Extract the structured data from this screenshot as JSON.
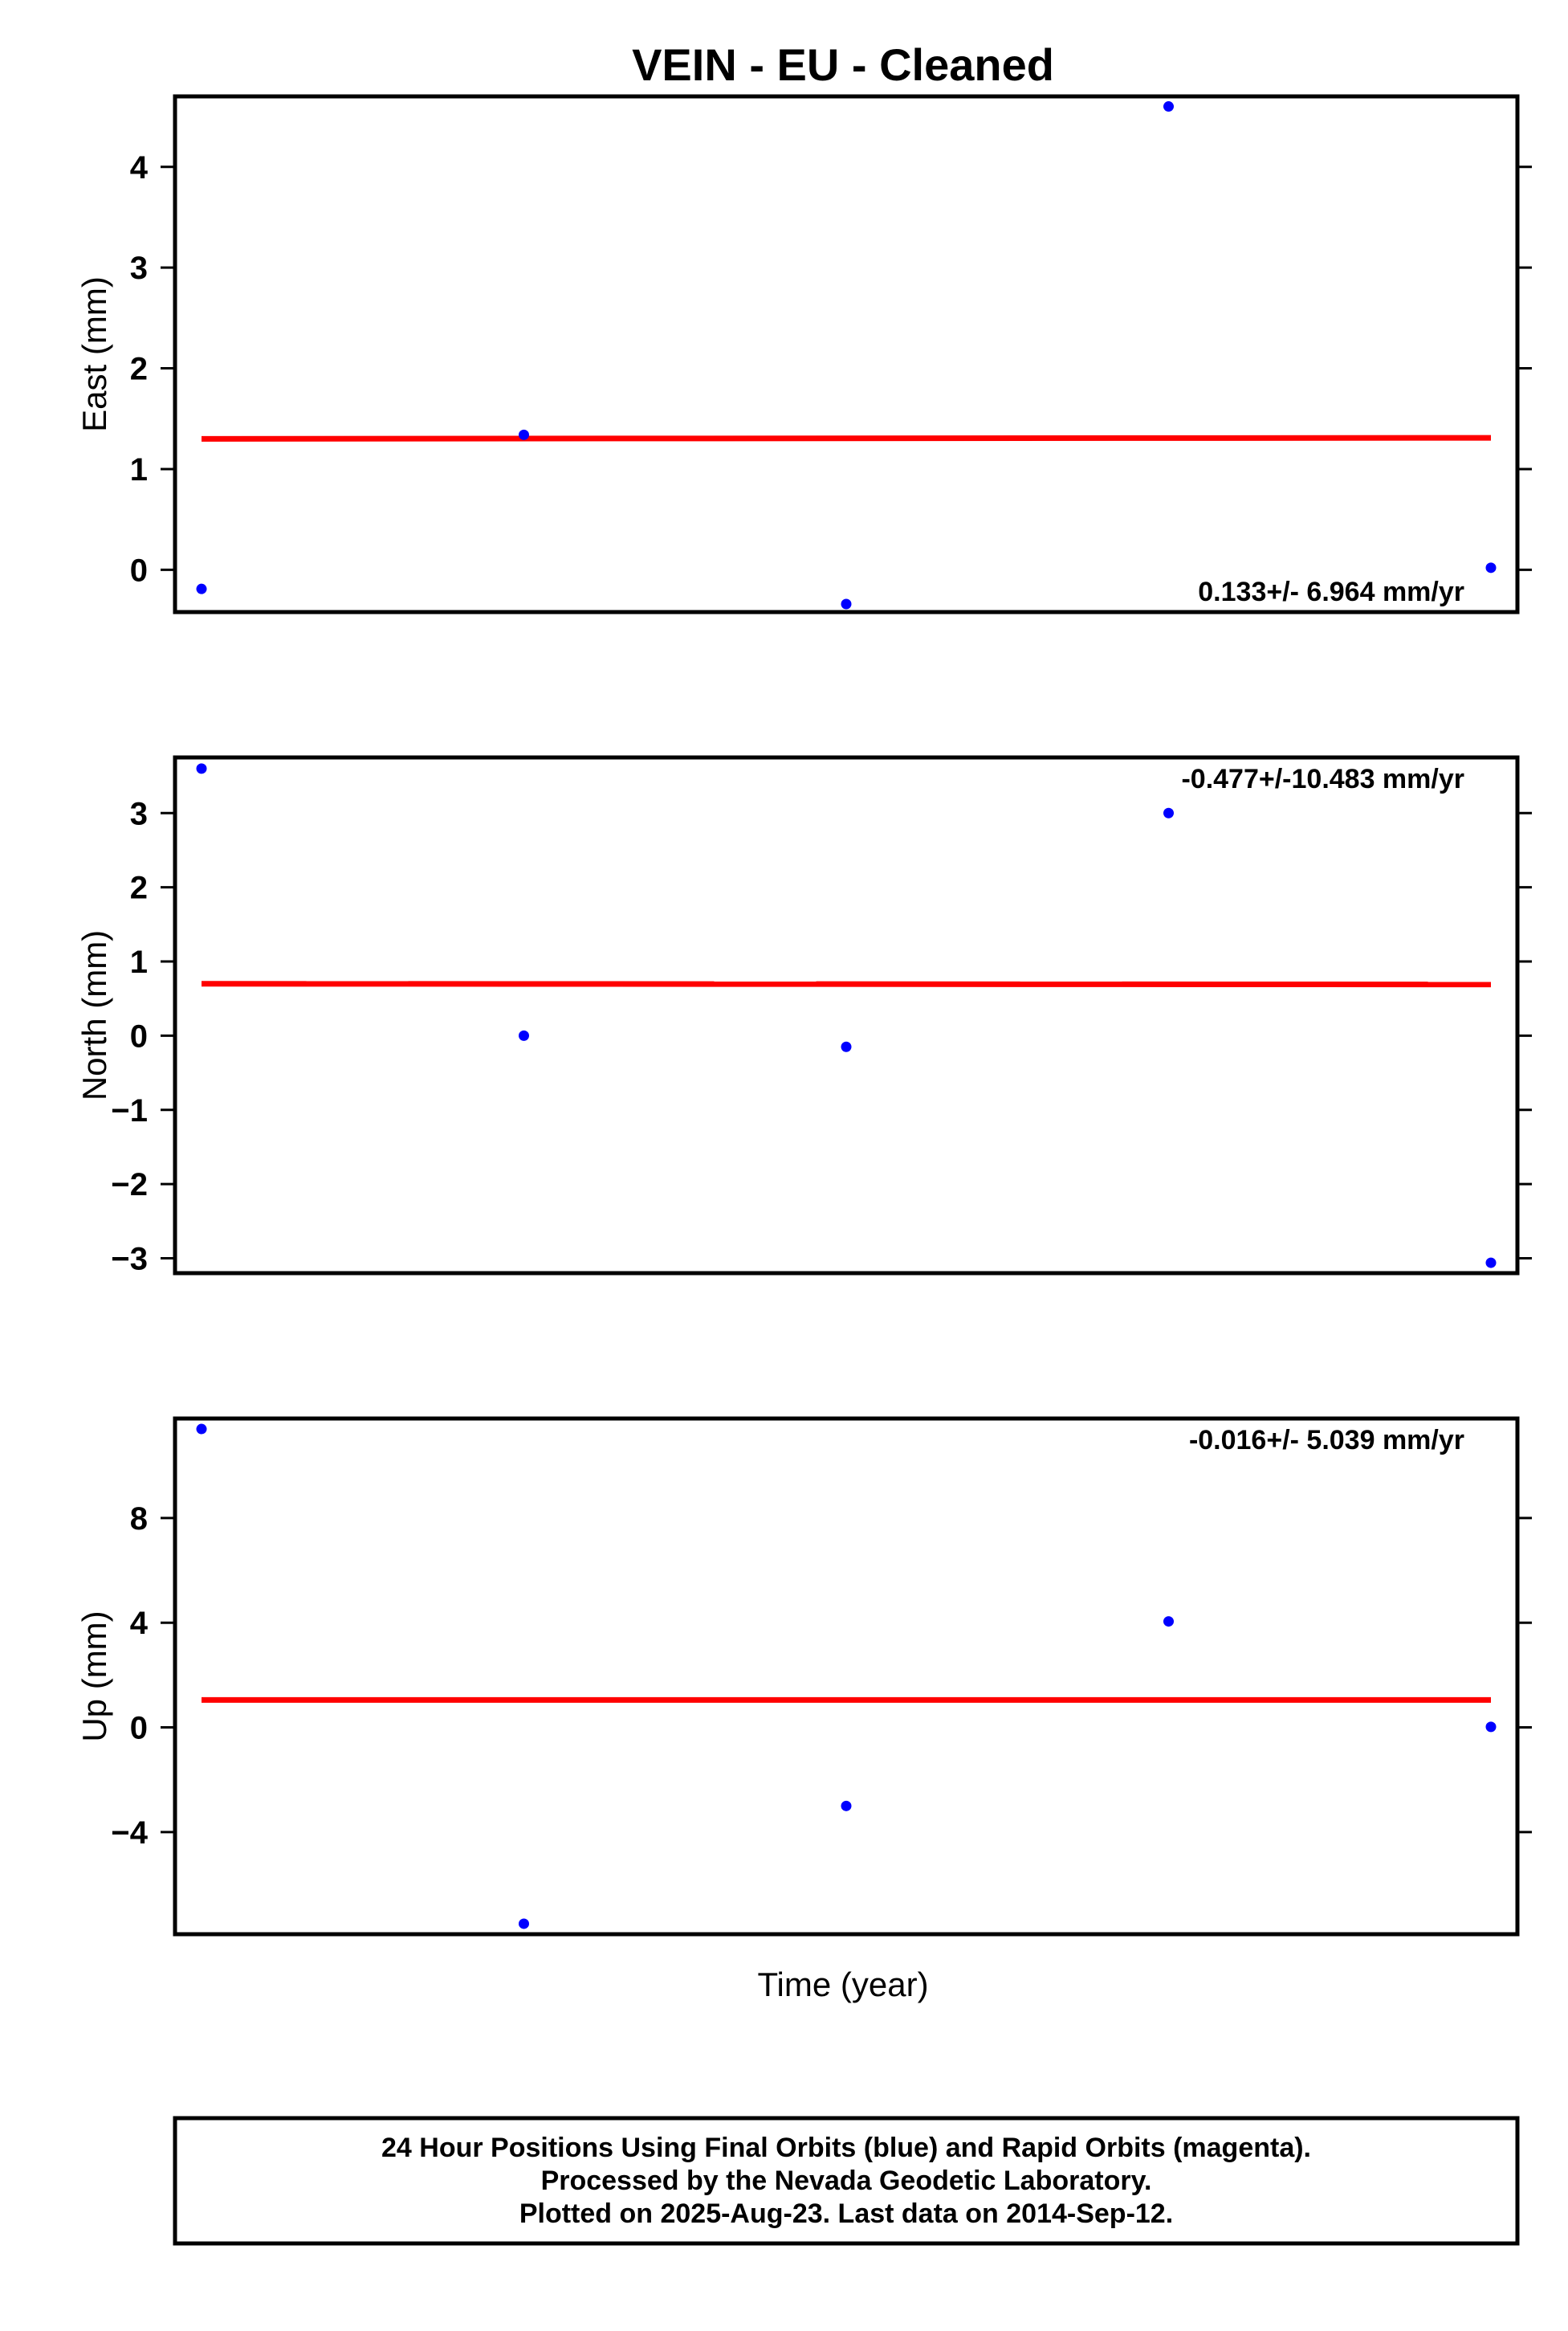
{
  "title": "VEIN  - EU - Cleaned",
  "x_axis_label": "Time (year)",
  "footer": {
    "lines": [
      "24 Hour Positions Using Final Orbits (blue) and Rapid Orbits (magenta).",
      "Processed by the Nevada Geodetic Laboratory.",
      "Plotted on 2025-Aug-23. Last data on 2014-Sep-12."
    ]
  },
  "colors": {
    "points": "#0000ff",
    "fit_line": "#ff0000",
    "frame": "#000000"
  },
  "chart_data": [
    {
      "type": "scatter",
      "ylabel": "East (mm)",
      "rate_text": "0.133+/- 6.964 mm/yr",
      "rate_position": "bottom-right",
      "ylim": [
        -0.42,
        4.7
      ],
      "yticks": [
        0,
        1,
        2,
        3,
        4
      ],
      "ytick_labels": [
        "0",
        "1",
        "2",
        "3",
        "4"
      ],
      "points": [
        -0.19,
        1.34,
        -0.34,
        4.6,
        0.02
      ],
      "fit": [
        1.3,
        1.31
      ]
    },
    {
      "type": "scatter",
      "ylabel": "North (mm)",
      "rate_text": "-0.477+/-10.483 mm/yr",
      "rate_position": "top-right",
      "ylim": [
        -3.2,
        3.75
      ],
      "yticks": [
        -3,
        -2,
        -1,
        0,
        1,
        2,
        3
      ],
      "ytick_labels": [
        "−3",
        "−2",
        "−1",
        "0",
        "1",
        "2",
        "3"
      ],
      "points": [
        3.6,
        0.0,
        -0.15,
        3.0,
        -3.06
      ],
      "fit": [
        0.7,
        0.69
      ]
    },
    {
      "type": "scatter",
      "ylabel": "Up (mm)",
      "rate_text": "-0.016+/- 5.039 mm/yr",
      "rate_position": "top-right",
      "ylim": [
        -7.9,
        11.8
      ],
      "yticks": [
        -4,
        0,
        4,
        8
      ],
      "ytick_labels": [
        "−4",
        "0",
        "4",
        "8"
      ],
      "points": [
        11.4,
        -7.5,
        -3.0,
        4.05,
        0.02
      ],
      "fit": [
        1.05,
        1.05
      ]
    }
  ]
}
